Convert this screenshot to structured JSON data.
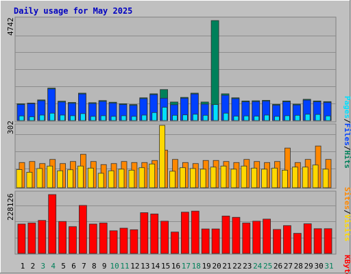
{
  "title": "Daily usage for May 2025",
  "colors": {
    "background": "#c0c0c0",
    "panel": "#b8b8b8",
    "title": "#0000c0",
    "hits": "#00805a",
    "files": "#0040ff",
    "pages": "#00e0ff",
    "visits": "#ffd800",
    "sites": "#ff8800",
    "kbytes": "#ff0000",
    "weekend": "#00805a",
    "weekday": "#000000"
  },
  "chart_data": [
    {
      "type": "bar",
      "panel": "hits-files-pages",
      "ylabel_max": "4742",
      "ylim": [
        0,
        4742
      ],
      "grid": true,
      "legend": "right side, vertical",
      "legend_labels": {
        "pages": "Pages",
        "files": "Files",
        "hits": "Hits",
        "sep": "/"
      },
      "categories": [
        "1",
        "2",
        "3",
        "4",
        "5",
        "6",
        "7",
        "8",
        "9",
        "10",
        "11",
        "12",
        "13",
        "14",
        "15",
        "16",
        "17",
        "18",
        "19",
        "20",
        "21",
        "22",
        "23",
        "24",
        "25",
        "26",
        "27",
        "28",
        "29",
        "30",
        "31"
      ],
      "series": [
        {
          "name": "Hits",
          "values": [
            800,
            830,
            980,
            1540,
            920,
            860,
            1300,
            850,
            950,
            870,
            800,
            760,
            1080,
            1270,
            1470,
            880,
            1100,
            1300,
            880,
            4742,
            1270,
            1080,
            930,
            940,
            960,
            770,
            930,
            780,
            1010,
            930,
            900
          ]
        },
        {
          "name": "Files",
          "values": [
            760,
            800,
            940,
            1500,
            880,
            820,
            1260,
            810,
            910,
            830,
            760,
            720,
            1040,
            1230,
            1060,
            750,
            1060,
            1260,
            780,
            750,
            1200,
            1040,
            890,
            900,
            920,
            730,
            890,
            740,
            970,
            890,
            860
          ]
        },
        {
          "name": "Pages",
          "values": [
            220,
            180,
            260,
            350,
            260,
            230,
            330,
            200,
            230,
            200,
            230,
            200,
            260,
            380,
            630,
            250,
            270,
            300,
            250,
            760,
            350,
            210,
            220,
            210,
            260,
            200,
            230,
            250,
            300,
            290,
            220
          ]
        }
      ]
    },
    {
      "type": "bar",
      "panel": "visits-sites",
      "ylabel_max": "302",
      "ylim": [
        0,
        302
      ],
      "grid": true,
      "legend": "right side, vertical",
      "legend_labels": {
        "sites": "Sites",
        "visits": "Visits",
        "sep": "/"
      },
      "categories": [
        "1",
        "2",
        "3",
        "4",
        "5",
        "6",
        "7",
        "8",
        "9",
        "10",
        "11",
        "12",
        "13",
        "14",
        "15",
        "16",
        "17",
        "18",
        "19",
        "20",
        "21",
        "22",
        "23",
        "24",
        "25",
        "26",
        "27",
        "28",
        "29",
        "30",
        "31"
      ],
      "series": [
        {
          "name": "Visits",
          "values": [
            88,
            75,
            93,
            105,
            82,
            87,
            105,
            95,
            70,
            82,
            90,
            85,
            97,
            115,
            302,
            80,
            97,
            93,
            90,
            100,
            105,
            90,
            105,
            95,
            90,
            95,
            85,
            100,
            100,
            110,
            90
          ]
        },
        {
          "name": "Sites",
          "values": [
            122,
            127,
            117,
            137,
            117,
            127,
            162,
            127,
            112,
            117,
            127,
            122,
            122,
            132,
            182,
            137,
            122,
            117,
            132,
            132,
            127,
            122,
            137,
            127,
            122,
            127,
            192,
            122,
            137,
            202,
            137
          ]
        }
      ]
    },
    {
      "type": "bar",
      "panel": "kbytes",
      "ylabel_max": "228126",
      "ylim": [
        0,
        228126
      ],
      "grid": true,
      "legend": "right side, vertical",
      "legend_labels": {
        "kbytes": "KBytes"
      },
      "categories": [
        "1",
        "2",
        "3",
        "4",
        "5",
        "6",
        "7",
        "8",
        "9",
        "10",
        "11",
        "12",
        "13",
        "14",
        "15",
        "16",
        "17",
        "18",
        "19",
        "20",
        "21",
        "22",
        "23",
        "24",
        "25",
        "26",
        "27",
        "28",
        "29",
        "30",
        "31"
      ],
      "series": [
        {
          "name": "KBytes",
          "values": [
            114000,
            118000,
            128000,
            228126,
            124000,
            104000,
            186000,
            114000,
            118000,
            88000,
            98000,
            92000,
            158000,
            153000,
            125000,
            83000,
            160000,
            164000,
            95000,
            95000,
            145000,
            140000,
            118000,
            125000,
            133000,
            93000,
            108000,
            78000,
            115000,
            96000,
            96000
          ]
        }
      ]
    }
  ],
  "weekend_days": [
    3,
    4,
    10,
    11,
    17,
    18,
    24,
    25,
    31
  ]
}
